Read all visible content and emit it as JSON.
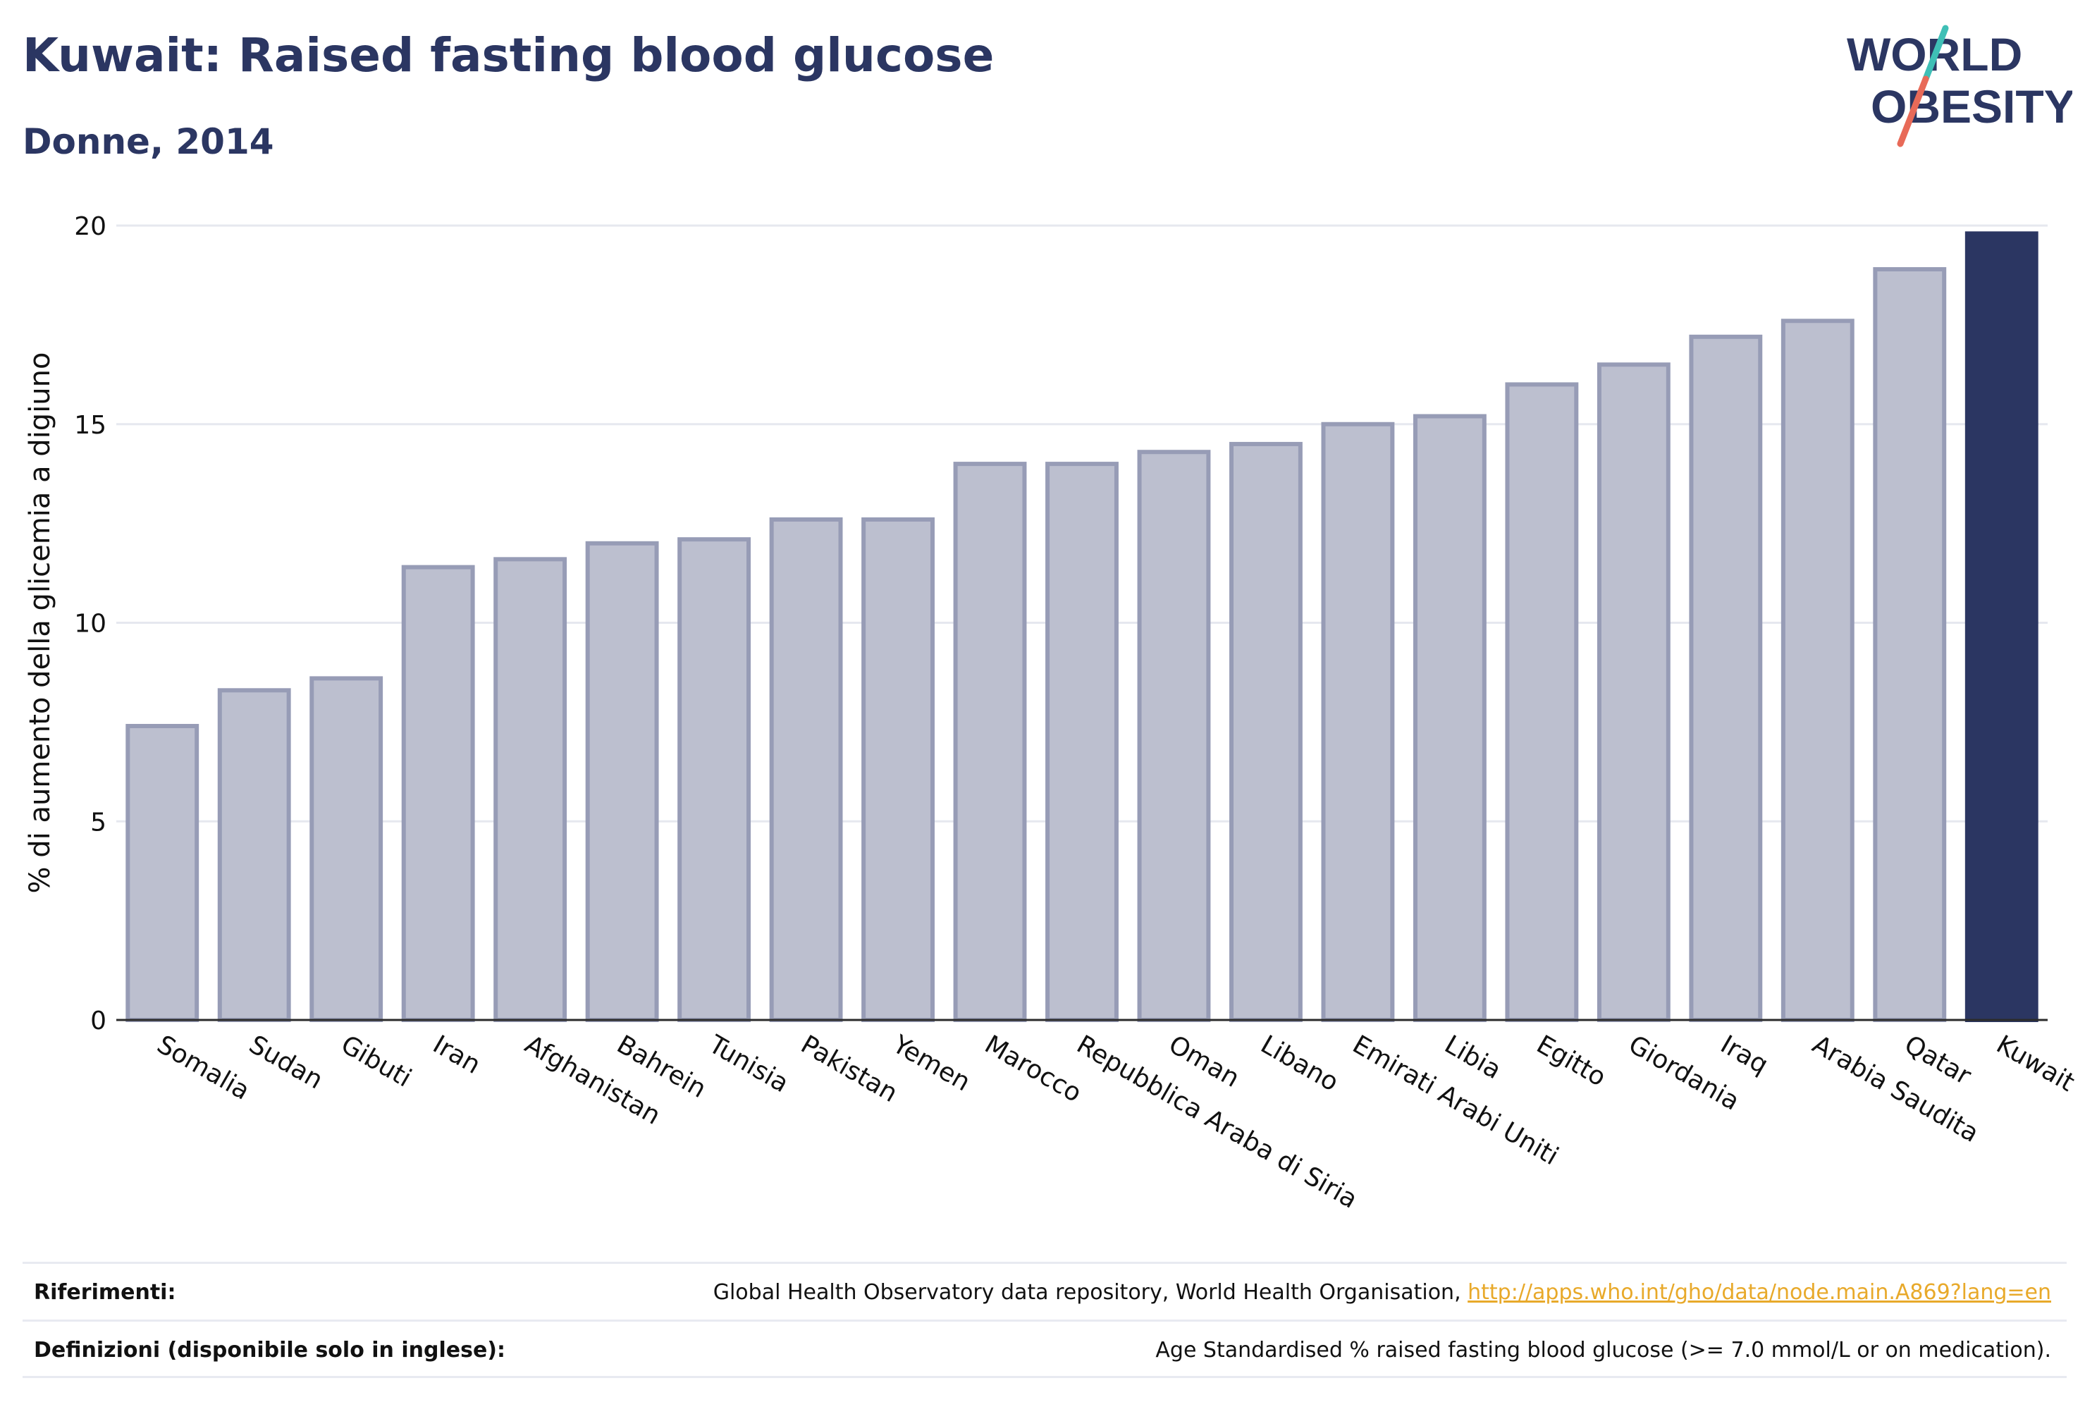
{
  "header": {
    "title": "Kuwait: Raised fasting blood glucose",
    "subtitle": "Donne, 2014"
  },
  "logo": {
    "line1": "WORLD",
    "line2": "OBESITY"
  },
  "colors": {
    "text": "#2b3662",
    "bar_default_fill": "#bcbfcf",
    "bar_default_stroke": "#979cb6",
    "bar_highlight": "#2b3662",
    "grid": "#e6e8ef",
    "link": "#e8a92a"
  },
  "chart_data": {
    "type": "bar",
    "title": "Kuwait: Raised fasting blood glucose",
    "subtitle": "Donne, 2014",
    "xlabel": "",
    "ylabel": "% di aumento della glicemia a digiuno",
    "ylim": [
      0,
      20
    ],
    "yticks": [
      0,
      5,
      10,
      15,
      20
    ],
    "grid": true,
    "highlight": "Kuwait",
    "categories": [
      "Somalia",
      "Sudan",
      "Gibuti",
      "Iran",
      "Afghanistan",
      "Bahrein",
      "Tunisia",
      "Pakistan",
      "Yemen",
      "Marocco",
      "Repubblica Araba di Siria",
      "Oman",
      "Libano",
      "Emirati Arabi Uniti",
      "Libia",
      "Egitto",
      "Giordania",
      "Iraq",
      "Arabia Saudita",
      "Qatar",
      "Kuwait"
    ],
    "values": [
      7.4,
      8.3,
      8.6,
      11.4,
      11.6,
      12.0,
      12.1,
      12.6,
      12.6,
      14.0,
      14.0,
      14.3,
      14.5,
      15.0,
      15.2,
      16.0,
      16.5,
      17.2,
      17.6,
      18.9,
      19.8
    ]
  },
  "footer": {
    "references_label": "Riferimenti:",
    "references_text": "Global Health Observatory data repository, World Health Organisation, ",
    "references_link": "http://apps.who.int/gho/data/node.main.A869?lang=en",
    "definitions_label": "Definizioni (disponibile solo in inglese):",
    "definitions_text": "Age Standardised % raised fasting blood glucose (>= 7.0 mmol/L or on medication)."
  }
}
